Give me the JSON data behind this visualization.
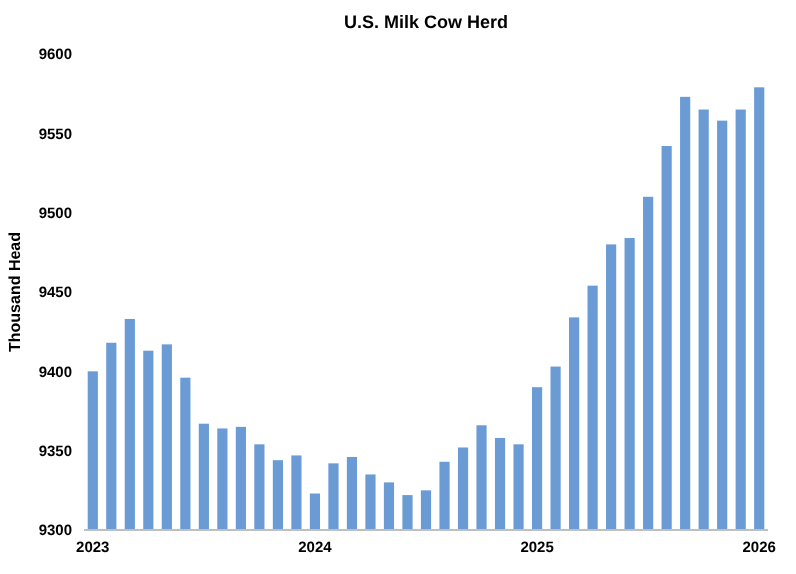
{
  "chart_data": {
    "type": "bar",
    "title": "U.S. Milk Cow Herd",
    "ylabel": "Thousand Head",
    "categories": [
      "2023",
      null,
      null,
      null,
      null,
      null,
      null,
      null,
      null,
      null,
      null,
      null,
      "2024",
      null,
      null,
      null,
      null,
      null,
      null,
      null,
      null,
      null,
      null,
      null,
      "2025",
      null,
      null,
      null,
      null,
      null,
      null,
      null,
      null,
      null,
      null,
      null,
      "2026"
    ],
    "series": [
      {
        "color": "#6a9bd5",
        "values": [
          9400,
          9418,
          9433,
          9413,
          9417,
          9396,
          9367,
          9364,
          9365,
          9354,
          9344,
          9347,
          9323,
          9342,
          9346,
          9335,
          9330,
          9322,
          9325,
          9343,
          9352,
          9366,
          9358,
          9354,
          9390,
          9403,
          9434,
          9454,
          9480,
          9484,
          9510,
          9542,
          9573,
          9565,
          9558,
          9565,
          9579
        ]
      }
    ],
    "ylim": [
      9300,
      9600
    ],
    "yticks": [
      9300,
      9350,
      9400,
      9450,
      9500,
      9550,
      9600
    ]
  }
}
